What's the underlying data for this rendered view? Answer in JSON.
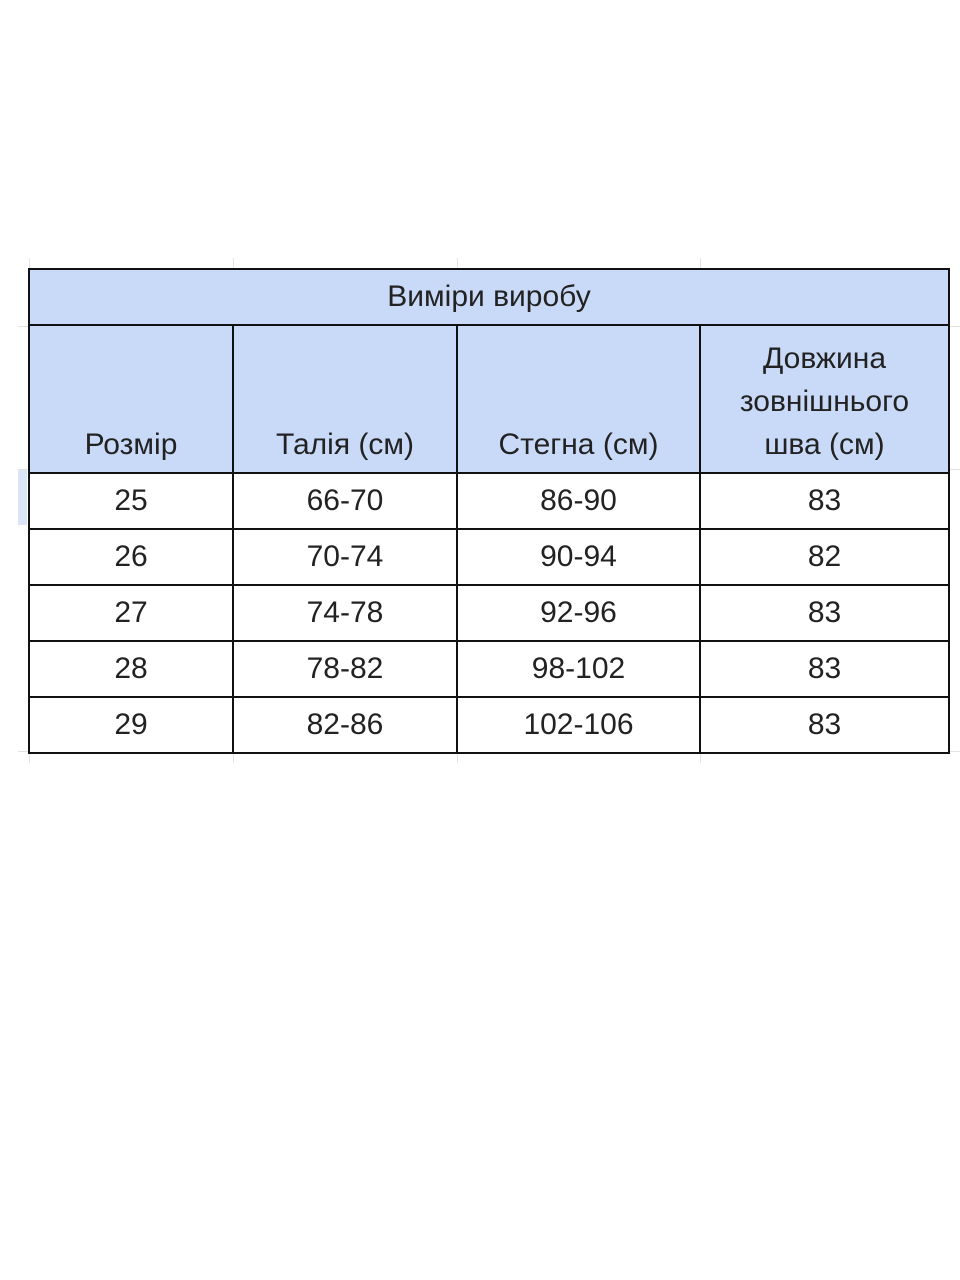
{
  "table": {
    "title": "Виміри виробу",
    "headers": [
      "Розмір",
      "Талія (см)",
      "Стегна (см)",
      "Довжина зовнішнього шва (см)"
    ],
    "header_color": "#c9daf8",
    "rows": [
      [
        "25",
        "66-70",
        "86-90",
        "83"
      ],
      [
        "26",
        "70-74",
        "90-94",
        "82"
      ],
      [
        "27",
        "74-78",
        "92-96",
        "83"
      ],
      [
        "28",
        "78-82",
        "98-102",
        "83"
      ],
      [
        "29",
        "82-86",
        "102-106",
        "83"
      ]
    ]
  }
}
